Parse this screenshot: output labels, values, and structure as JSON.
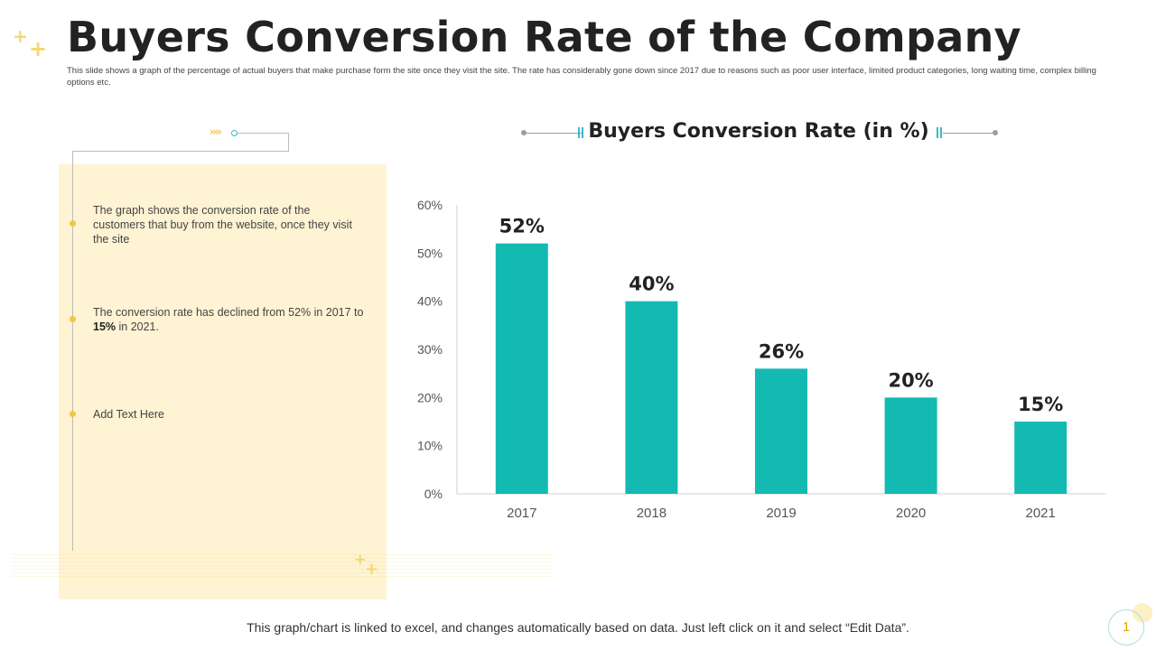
{
  "slide": {
    "title": "Buyers Conversion Rate of the Company",
    "subtitle": "This slide shows a graph of the percentage of actual buyers that make purchase form the site once they visit the site. The rate has considerably gone down since 2017 due to reasons such as poor user interface, limited product categories, long waiting time, complex billing options etc.",
    "bullets": [
      {
        "text": "The graph shows the conversion rate of the customers that buy from the website, once they visit the site"
      },
      {
        "text_before": "The conversion rate has declined from 52% in 2017 to ",
        "bold": "15%",
        "text_after": " in 2021."
      },
      {
        "text": "Add Text Here"
      }
    ],
    "footer": "This graph/chart is linked to excel, and changes automatically based on data. Just left click on it and select “Edit Data”.",
    "page_number": "1"
  },
  "colors": {
    "bar": "#13bab2",
    "panel": "#fef3d3",
    "accent": "#f5c542",
    "teal_accent": "#3fb8c4"
  },
  "chart_data": {
    "type": "bar",
    "title": "Buyers Conversion Rate (in %)",
    "categories": [
      "2017",
      "2018",
      "2019",
      "2020",
      "2021"
    ],
    "values": [
      52,
      40,
      26,
      20,
      15
    ],
    "data_labels": [
      "52%",
      "40%",
      "26%",
      "20%",
      "15%"
    ],
    "ylim": [
      0,
      60
    ],
    "yticks": [
      0,
      10,
      20,
      30,
      40,
      50,
      60
    ],
    "ytick_labels": [
      "0%",
      "10%",
      "20%",
      "30%",
      "40%",
      "50%",
      "60%"
    ],
    "xlabel": "",
    "ylabel": "",
    "grid": false,
    "legend": "none"
  }
}
